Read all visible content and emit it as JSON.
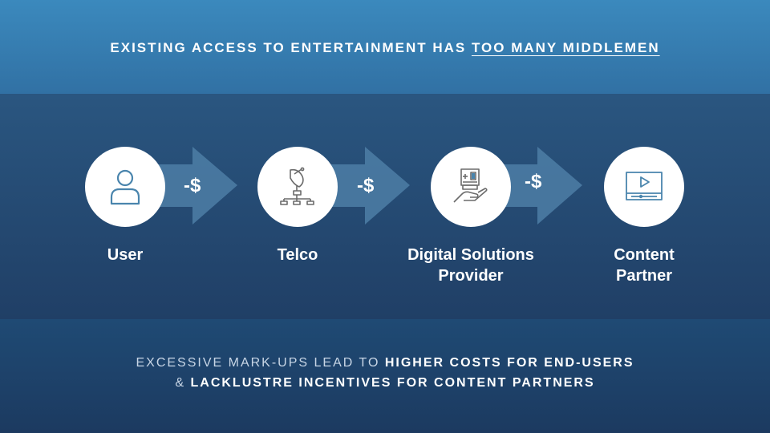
{
  "header": {
    "title_prefix": "EXISTING ACCESS TO ENTERTAINMENT HAS ",
    "title_emphasis": "TOO MANY MIDDLEMEN"
  },
  "flow": {
    "nodes": [
      {
        "label": "User",
        "icon": "user-icon"
      },
      {
        "label": "Telco",
        "icon": "satellite-dish-icon"
      },
      {
        "label_line1": "Digital Solutions",
        "label_line2": "Provider",
        "icon": "hand-card-icon"
      },
      {
        "label_line1": "Content",
        "label_line2": "Partner",
        "icon": "video-player-icon"
      }
    ],
    "costs": [
      "-$",
      "-$",
      "-$"
    ]
  },
  "footer": {
    "line1_light": "EXCESSIVE MARK-UPS LEAD TO ",
    "line1_bold": "HIGHER COSTS FOR END-USERS",
    "line2_light": "& ",
    "line2_bold": "LACKLUSTRE INCENTIVES FOR CONTENT PARTNERS"
  },
  "colors": {
    "top_band": "#3b89bd",
    "middle_band": "#2a5680",
    "bottom_band": "#1f4a74",
    "icon_stroke": "#4a85ad",
    "arrow_fill": "#4d7ea6"
  }
}
